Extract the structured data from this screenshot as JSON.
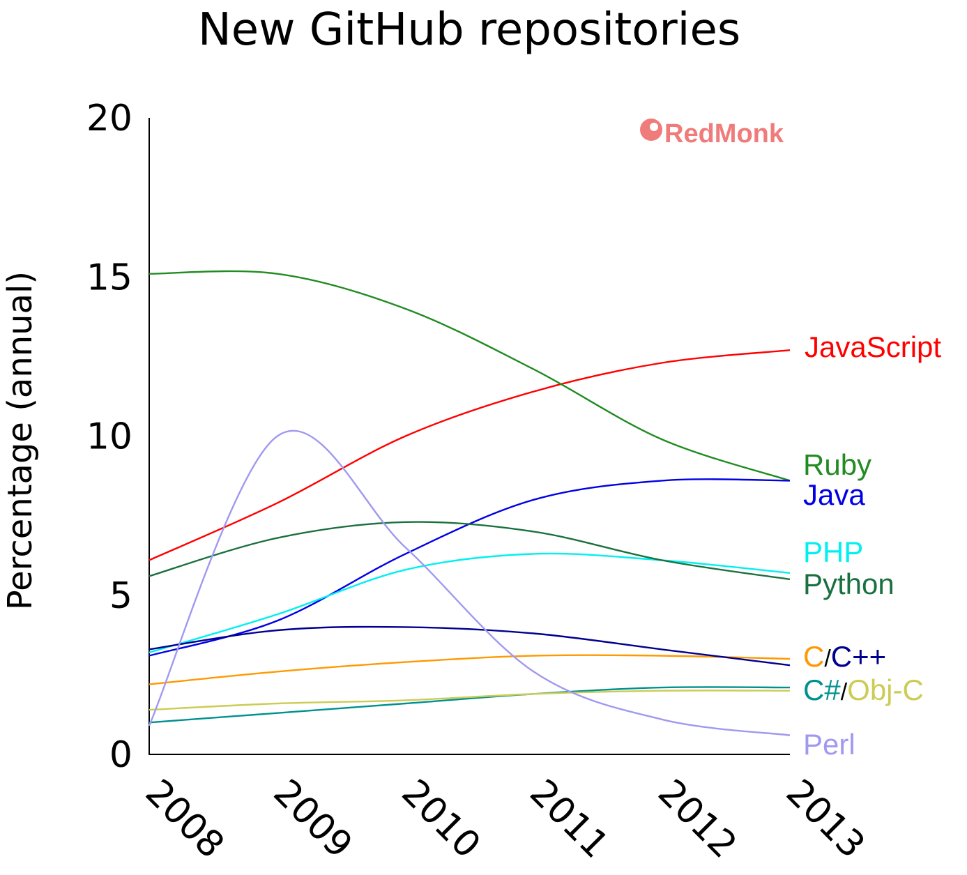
{
  "chart_data": {
    "type": "line",
    "title": "New GitHub repositories",
    "xlabel": "",
    "ylabel": "Percentage (annual)",
    "x": [
      2008,
      2009,
      2010,
      2011,
      2012,
      2013
    ],
    "x_tick_labels": [
      "2008",
      "2009",
      "2010",
      "2011",
      "2012",
      "2013"
    ],
    "ylim": [
      0,
      20
    ],
    "y_ticks": [
      0,
      5,
      10,
      15,
      20
    ],
    "y_tick_labels": [
      "0",
      "5",
      "10",
      "15",
      "20"
    ],
    "grid": false,
    "legend": "inline-right",
    "brand": "RedMonk",
    "brand_color": "#f07b7b",
    "series": [
      {
        "name": "JavaScript",
        "color": "#ff0000",
        "values": [
          6.1,
          7.9,
          10.0,
          11.4,
          12.3,
          12.7
        ]
      },
      {
        "name": "Ruby",
        "color": "#228b22",
        "values": [
          15.1,
          15.1,
          14.0,
          12.1,
          9.9,
          8.6
        ]
      },
      {
        "name": "Java",
        "color": "#0000e6",
        "values": [
          3.1,
          4.2,
          6.3,
          8.0,
          8.6,
          8.6
        ]
      },
      {
        "name": "PHP",
        "color": "#00f0f0",
        "values": [
          3.2,
          4.4,
          5.8,
          6.3,
          6.1,
          5.7
        ]
      },
      {
        "name": "Python",
        "color": "#1b7040",
        "values": [
          5.6,
          6.8,
          7.3,
          7.0,
          6.1,
          5.5
        ]
      },
      {
        "name": "C",
        "color": "#ff9900",
        "values": [
          2.2,
          2.6,
          2.9,
          3.1,
          3.1,
          3.0
        ]
      },
      {
        "name": "C++",
        "color": "#000090",
        "values": [
          3.3,
          3.9,
          4.0,
          3.8,
          3.3,
          2.8
        ]
      },
      {
        "name": "C#",
        "color": "#009090",
        "values": [
          1.0,
          1.3,
          1.6,
          1.9,
          2.1,
          2.1
        ]
      },
      {
        "name": "Obj-C",
        "color": "#cccc55",
        "values": [
          1.4,
          1.6,
          1.7,
          1.9,
          2.0,
          2.0
        ]
      },
      {
        "name": "Perl",
        "color": "#a099f0",
        "values": [
          0.9,
          10.0,
          6.5,
          2.6,
          1.1,
          0.6
        ]
      }
    ],
    "labels": {
      "javascript": "JavaScript",
      "ruby": "Ruby",
      "java": "Java",
      "php": "PHP",
      "python": "Python",
      "c": "C",
      "cpp": "C++",
      "csharp": "C#",
      "objc": "Obj-C",
      "perl": "Perl",
      "slash": "/"
    }
  }
}
